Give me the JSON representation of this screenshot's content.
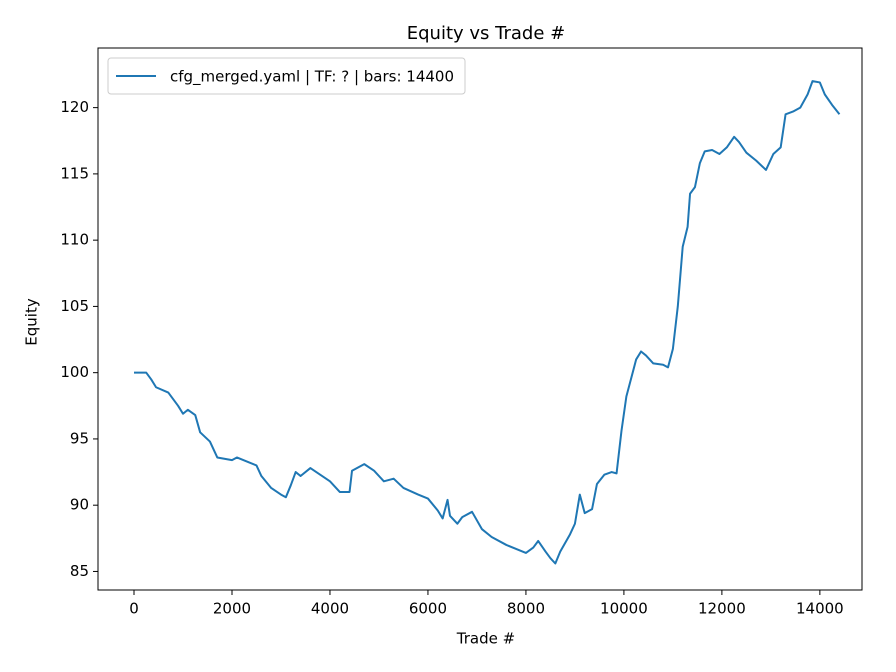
{
  "chart_data": {
    "type": "line",
    "title": "Equity vs Trade #",
    "xlabel": "Trade #",
    "ylabel": "Equity",
    "x": [
      0,
      250,
      350,
      450,
      700,
      900,
      1000,
      1100,
      1250,
      1350,
      1550,
      1700,
      2000,
      2100,
      2300,
      2500,
      2600,
      2800,
      3000,
      3100,
      3200,
      3300,
      3400,
      3600,
      3800,
      4000,
      4200,
      4400,
      4450,
      4700,
      4900,
      5100,
      5300,
      5500,
      5800,
      6000,
      6200,
      6300,
      6400,
      6450,
      6600,
      6700,
      6900,
      7100,
      7300,
      7600,
      7800,
      8000,
      8150,
      8250,
      8400,
      8500,
      8600,
      8700,
      8900,
      9000,
      9100,
      9200,
      9350,
      9450,
      9600,
      9750,
      9850,
      9950,
      10050,
      10150,
      10250,
      10350,
      10450,
      10600,
      10800,
      10900,
      11000,
      11100,
      11200,
      11300,
      11350,
      11450,
      11550,
      11650,
      11800,
      11950,
      12100,
      12250,
      12350,
      12500,
      12700,
      12900,
      13050,
      13200,
      13300,
      13450,
      13600,
      13750,
      13850,
      14000,
      14100,
      14250,
      14400
    ],
    "series": [
      {
        "name": "cfg_merged.yaml | TF: ? | bars: 14400",
        "color": "#1f77b4",
        "values": [
          100,
          100,
          99.5,
          98.9,
          98.5,
          97.5,
          96.9,
          97.2,
          96.8,
          95.5,
          94.8,
          93.6,
          93.4,
          93.6,
          93.3,
          93,
          92.2,
          91.3,
          90.8,
          90.6,
          91.5,
          92.5,
          92.2,
          92.8,
          92.3,
          91.8,
          91,
          91,
          92.6,
          93.1,
          92.6,
          91.8,
          92,
          91.3,
          90.8,
          90.5,
          89.6,
          89,
          90.4,
          89.2,
          88.6,
          89.1,
          89.5,
          88.2,
          87.6,
          87,
          86.7,
          86.4,
          86.8,
          87.3,
          86.5,
          86,
          85.6,
          86.5,
          87.8,
          88.6,
          90.8,
          89.4,
          89.7,
          91.6,
          92.3,
          92.5,
          92.4,
          95.6,
          98.2,
          99.6,
          101,
          101.6,
          101.3,
          100.7,
          100.6,
          100.4,
          101.8,
          105,
          109.5,
          111,
          113.5,
          114,
          115.8,
          116.7,
          116.8,
          116.5,
          117,
          117.8,
          117.4,
          116.6,
          116,
          115.3,
          116.5,
          117,
          119.5,
          119.7,
          120,
          121,
          122,
          121.9,
          121,
          120.2,
          119.5
        ]
      }
    ],
    "xlim": [
      -735,
      14860
    ],
    "ylim": [
      83.6,
      124.5
    ],
    "xticks": [
      0,
      2000,
      4000,
      6000,
      8000,
      10000,
      12000,
      14000
    ],
    "yticks": [
      85,
      90,
      95,
      100,
      105,
      110,
      115,
      120
    ],
    "grid": false,
    "legend": "upper left"
  }
}
